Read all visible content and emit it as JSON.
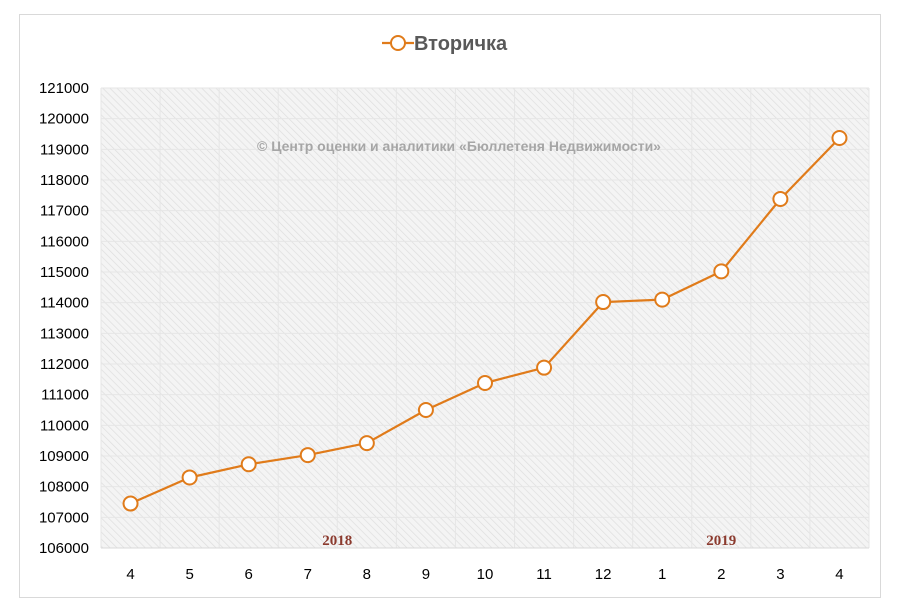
{
  "chart_data": {
    "type": "line",
    "title": "",
    "xlabel": "",
    "ylabel": "",
    "categories": [
      "4",
      "5",
      "6",
      "7",
      "8",
      "9",
      "10",
      "11",
      "12",
      "1",
      "2",
      "3",
      "4"
    ],
    "series": [
      {
        "name": "Вторичка",
        "color": "#e07b1a",
        "values": [
          107450,
          108300,
          108730,
          109030,
          109420,
          110500,
          111380,
          111880,
          114020,
          114100,
          115020,
          117380,
          119370
        ]
      }
    ],
    "ylim": [
      106000,
      121000
    ],
    "ytick_step": 1000,
    "grid": true,
    "legend": "top-center",
    "group_labels": [
      {
        "text": "2018",
        "color": "#8b3a2e"
      },
      {
        "text": "2019",
        "color": "#8b3a2e"
      }
    ],
    "annotation": "© Центр оценки и аналитики «Бюллетеня Недвижимости»"
  }
}
